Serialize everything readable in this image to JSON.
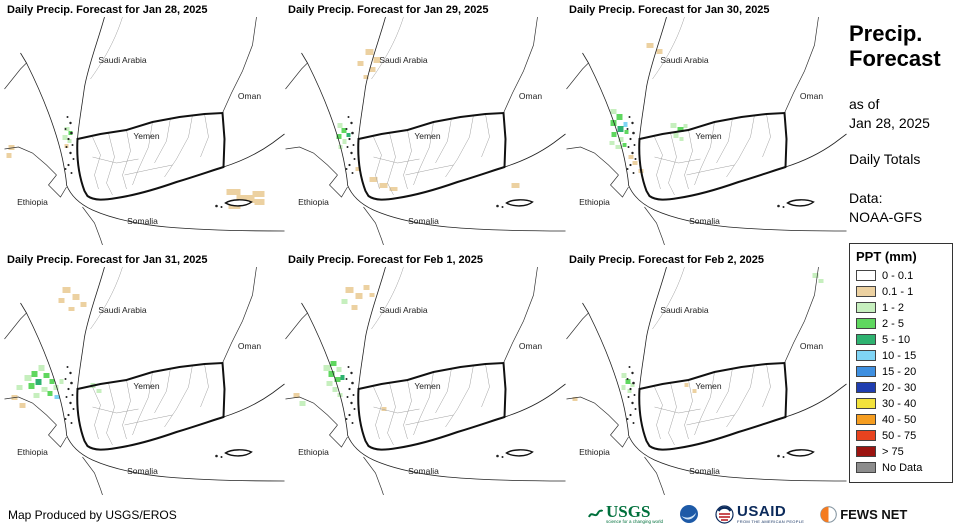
{
  "panels": [
    {
      "title": "Daily Precip. Forecast for Jan 28, 2025",
      "patches": [
        [
          60,
          110,
          5,
          4,
          "lg"
        ],
        [
          64,
          114,
          4,
          4,
          "g"
        ],
        [
          58,
          118,
          5,
          5,
          "lg"
        ],
        [
          63,
          122,
          4,
          4,
          "lg"
        ],
        [
          60,
          127,
          4,
          4,
          "tan"
        ],
        [
          222,
          172,
          14,
          6,
          "tan"
        ],
        [
          232,
          178,
          18,
          8,
          "tan"
        ],
        [
          224,
          186,
          12,
          6,
          "tan"
        ],
        [
          248,
          174,
          12,
          6,
          "tan"
        ],
        [
          250,
          182,
          10,
          6,
          "tan"
        ],
        [
          4,
          128,
          6,
          5,
          "tan"
        ],
        [
          2,
          136,
          5,
          5,
          "tan"
        ]
      ]
    },
    {
      "title": "Daily Precip. Forecast for Jan 29, 2025",
      "patches": [
        [
          80,
          32,
          8,
          6,
          "tan"
        ],
        [
          88,
          40,
          7,
          6,
          "tan"
        ],
        [
          72,
          44,
          6,
          5,
          "tan"
        ],
        [
          84,
          50,
          6,
          5,
          "tan"
        ],
        [
          78,
          58,
          5,
          4,
          "tan"
        ],
        [
          52,
          106,
          5,
          5,
          "lg"
        ],
        [
          56,
          111,
          5,
          5,
          "g"
        ],
        [
          51,
          117,
          5,
          5,
          "g"
        ],
        [
          57,
          122,
          4,
          5,
          "lg"
        ],
        [
          53,
          128,
          4,
          4,
          "lg"
        ],
        [
          61,
          116,
          4,
          4,
          "teal"
        ],
        [
          84,
          160,
          8,
          5,
          "tan"
        ],
        [
          94,
          166,
          8,
          5,
          "tan"
        ],
        [
          104,
          170,
          8,
          4,
          "tan"
        ],
        [
          70,
          150,
          5,
          4,
          "tan"
        ],
        [
          226,
          166,
          8,
          5,
          "tan"
        ]
      ]
    },
    {
      "title": "Daily Precip. Forecast for Jan 30, 2025",
      "patches": [
        [
          44,
          92,
          6,
          5,
          "lg"
        ],
        [
          50,
          97,
          6,
          6,
          "g"
        ],
        [
          44,
          103,
          6,
          6,
          "g"
        ],
        [
          51,
          109,
          6,
          6,
          "teal"
        ],
        [
          45,
          115,
          5,
          5,
          "g"
        ],
        [
          52,
          120,
          5,
          5,
          "lg"
        ],
        [
          57,
          105,
          4,
          5,
          "cyan"
        ],
        [
          58,
          113,
          4,
          4,
          "g"
        ],
        [
          43,
          124,
          5,
          4,
          "lg"
        ],
        [
          49,
          128,
          6,
          4,
          "lg"
        ],
        [
          56,
          126,
          4,
          4,
          "g"
        ],
        [
          104,
          106,
          6,
          5,
          "lg"
        ],
        [
          111,
          110,
          6,
          5,
          "g"
        ],
        [
          107,
          116,
          5,
          5,
          "lg"
        ],
        [
          117,
          107,
          4,
          4,
          "lg"
        ],
        [
          113,
          120,
          4,
          4,
          "lg"
        ],
        [
          80,
          26,
          7,
          5,
          "tan"
        ],
        [
          90,
          32,
          6,
          5,
          "tan"
        ],
        [
          62,
          138,
          5,
          4,
          "tan"
        ],
        [
          66,
          144,
          5,
          4,
          "tan"
        ],
        [
          72,
          152,
          5,
          4,
          "tan"
        ]
      ]
    },
    {
      "title": "Daily Precip. Forecast for Jan 31, 2025",
      "patches": [
        [
          20,
          108,
          7,
          6,
          "lg"
        ],
        [
          27,
          104,
          6,
          6,
          "g"
        ],
        [
          34,
          98,
          6,
          6,
          "lg"
        ],
        [
          24,
          116,
          6,
          6,
          "g"
        ],
        [
          31,
          112,
          6,
          6,
          "teal"
        ],
        [
          39,
          106,
          6,
          5,
          "g"
        ],
        [
          45,
          112,
          5,
          5,
          "g"
        ],
        [
          37,
          120,
          6,
          5,
          "lg"
        ],
        [
          29,
          126,
          6,
          5,
          "lg"
        ],
        [
          43,
          124,
          5,
          5,
          "g"
        ],
        [
          49,
          118,
          5,
          5,
          "lg"
        ],
        [
          12,
          118,
          6,
          5,
          "lg"
        ],
        [
          7,
          128,
          6,
          5,
          "tan"
        ],
        [
          15,
          136,
          6,
          5,
          "tan"
        ],
        [
          50,
          128,
          5,
          4,
          "cyan"
        ],
        [
          55,
          112,
          4,
          5,
          "lg"
        ],
        [
          58,
          20,
          8,
          6,
          "tan"
        ],
        [
          68,
          27,
          7,
          6,
          "tan"
        ],
        [
          54,
          31,
          6,
          5,
          "tan"
        ],
        [
          76,
          35,
          6,
          5,
          "tan"
        ],
        [
          64,
          40,
          6,
          4,
          "tan"
        ],
        [
          86,
          116,
          5,
          5,
          "lg"
        ],
        [
          92,
          122,
          5,
          4,
          "lg"
        ]
      ]
    },
    {
      "title": "Daily Precip. Forecast for Feb 1, 2025",
      "patches": [
        [
          38,
          98,
          7,
          6,
          "lg"
        ],
        [
          45,
          94,
          6,
          5,
          "g"
        ],
        [
          43,
          104,
          6,
          6,
          "g"
        ],
        [
          51,
          100,
          5,
          5,
          "lg"
        ],
        [
          49,
          110,
          6,
          5,
          "g"
        ],
        [
          41,
          114,
          6,
          5,
          "lg"
        ],
        [
          47,
          120,
          5,
          5,
          "lg"
        ],
        [
          55,
          108,
          4,
          5,
          "teal"
        ],
        [
          52,
          126,
          5,
          4,
          "lg"
        ],
        [
          60,
          20,
          8,
          6,
          "tan"
        ],
        [
          70,
          26,
          7,
          6,
          "tan"
        ],
        [
          56,
          32,
          6,
          5,
          "lg"
        ],
        [
          78,
          18,
          6,
          5,
          "tan"
        ],
        [
          66,
          38,
          6,
          5,
          "tan"
        ],
        [
          84,
          26,
          5,
          4,
          "tan"
        ],
        [
          8,
          126,
          6,
          5,
          "tan"
        ],
        [
          14,
          134,
          6,
          5,
          "lg"
        ],
        [
          96,
          140,
          5,
          4,
          "tan"
        ]
      ]
    },
    {
      "title": "Daily Precip. Forecast for Feb 2, 2025",
      "patches": [
        [
          55,
          106,
          5,
          5,
          "lg"
        ],
        [
          59,
          112,
          5,
          5,
          "g"
        ],
        [
          55,
          118,
          4,
          5,
          "lg"
        ],
        [
          61,
          122,
          4,
          4,
          "lg"
        ],
        [
          64,
          116,
          4,
          4,
          "lg"
        ],
        [
          118,
          116,
          4,
          4,
          "tan"
        ],
        [
          126,
          122,
          4,
          4,
          "tan"
        ],
        [
          246,
          6,
          6,
          5,
          "lg"
        ],
        [
          252,
          12,
          5,
          4,
          "lg"
        ],
        [
          6,
          130,
          5,
          4,
          "tan"
        ]
      ]
    }
  ],
  "map_labels": {
    "saudi_arabia": "Saudi Arabia",
    "oman": "Oman",
    "yemen": "Yemen",
    "ethiopia": "Ethiopia",
    "somalia": "Somalia"
  },
  "sidebar": {
    "title_line1": "Precip.",
    "title_line2": "Forecast",
    "asof_label": "as of",
    "asof_date": "Jan 28, 2025",
    "totals": "Daily Totals",
    "data_label": "Data:",
    "data_value": "NOAA-GFS"
  },
  "legend": {
    "title": "PPT (mm)",
    "entries": [
      {
        "label": "0 - 0.1",
        "color": "#ffffff"
      },
      {
        "label": "0.1 - 1",
        "color": "#ecd1a1"
      },
      {
        "label": "1 - 2",
        "color": "#c6efbe"
      },
      {
        "label": "2 - 5",
        "color": "#5fd75f"
      },
      {
        "label": "5 - 10",
        "color": "#2eb270"
      },
      {
        "label": "10 - 15",
        "color": "#7fd4f5"
      },
      {
        "label": "15 - 20",
        "color": "#3e8fe0"
      },
      {
        "label": "20 - 30",
        "color": "#1f3db0"
      },
      {
        "label": "30 - 40",
        "color": "#f2e23b"
      },
      {
        "label": "40 - 50",
        "color": "#f59d20"
      },
      {
        "label": "50 - 75",
        "color": "#e8431f"
      },
      {
        "label": "> 75",
        "color": "#9c1410"
      },
      {
        "label": "No Data",
        "color": "#8c8c8c"
      }
    ]
  },
  "palette": {
    "tan": "#ecd1a1",
    "lg": "#c6efbe",
    "g": "#5fd75f",
    "teal": "#2eb270",
    "cyan": "#7fd4f5"
  },
  "footer": {
    "credit": "Map Produced by USGS/EROS",
    "usgs": {
      "name": "USGS",
      "tagline": "science for a changing world"
    },
    "usaid": {
      "name": "USAID",
      "tagline": "FROM THE AMERICAN PEOPLE"
    },
    "fewsnet": {
      "name": "FEWS NET"
    }
  }
}
